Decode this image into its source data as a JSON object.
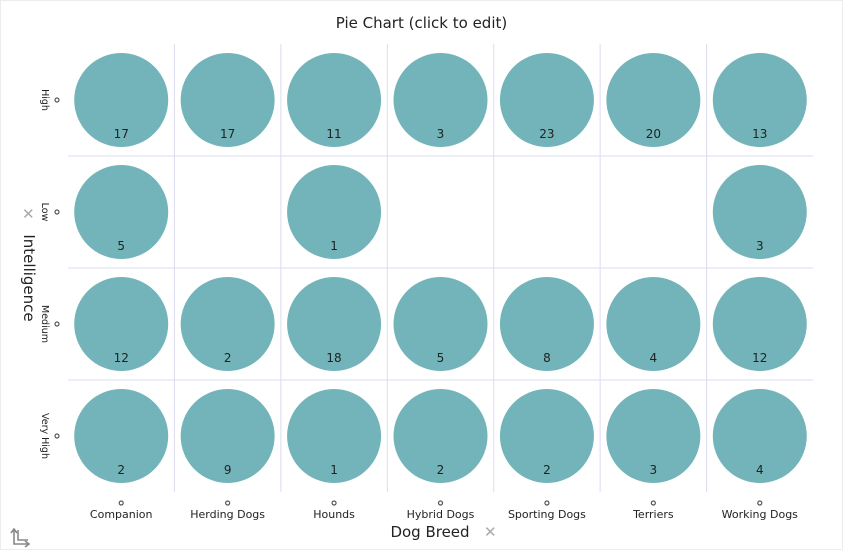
{
  "title": "Pie Chart (click to edit)",
  "icons": {
    "axis_remove": "close-icon",
    "swap_axes": "swap-axes-icon"
  },
  "colors": {
    "slice": "#72b4b9",
    "grid": "#dcdcf0",
    "label": "#222222"
  },
  "chart_data": {
    "type": "pie",
    "title": "Pie Chart (click to edit)",
    "xlabel": "Dog Breed",
    "ylabel": "Intelligence",
    "x_categories": [
      "Companion",
      "Herding Dogs",
      "Hounds",
      "Hybrid Dogs",
      "Sporting Dogs",
      "Terriers",
      "Working Dogs"
    ],
    "y_categories": [
      "High",
      "Low",
      "Medium",
      "Very High"
    ],
    "values": [
      [
        17,
        17,
        11,
        3,
        23,
        20,
        13
      ],
      [
        5,
        null,
        1,
        null,
        null,
        null,
        3
      ],
      [
        12,
        2,
        18,
        5,
        8,
        4,
        12
      ],
      [
        2,
        9,
        1,
        2,
        2,
        3,
        4
      ]
    ],
    "grid": true
  }
}
